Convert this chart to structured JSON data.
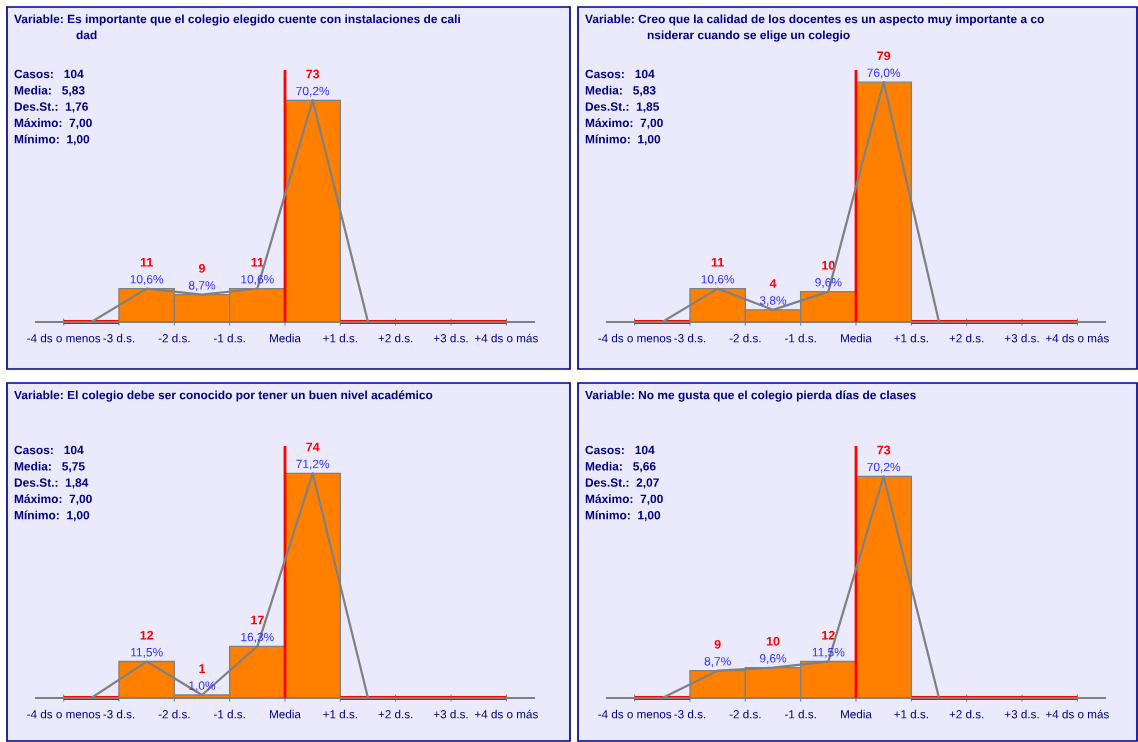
{
  "chart_data": [
    {
      "type": "histogram",
      "title": "Variable: Es importante que el colegio elegido cuente con instalaciones de cali\ndad",
      "bins": [
        -4,
        -3,
        -2,
        -1,
        0,
        1,
        2,
        3,
        4
      ],
      "values": [
        0,
        11,
        9,
        11,
        73,
        0,
        0,
        0
      ],
      "colors": [
        "#ff0000",
        "#ff8000",
        "#ff8000",
        "#ff8000",
        "#ff8000",
        "#ff0000",
        "#ff0000",
        "#ff0000"
      ],
      "value_labels": [
        null,
        "11",
        "9",
        "11",
        "73",
        null,
        null,
        null
      ],
      "series": [
        {
          "type": "line",
          "x": [
            -3.5,
            -2.5,
            -1.5,
            -0.5,
            0.5,
            1.5
          ],
          "values": [
            0,
            11,
            9,
            11,
            73,
            0
          ],
          "color": "#808080"
        }
      ],
      "xlim": [
        -4.5,
        4.5
      ],
      "ylim": [
        0,
        83
      ],
      "xticks": [
        {
          "value": -4,
          "label": "-4 ds o menos"
        },
        {
          "value": -3,
          "label": "-3 d.s."
        },
        {
          "value": -2,
          "label": "-2 d.s."
        },
        {
          "value": -1,
          "label": "-1 d.s."
        },
        {
          "value": 0,
          "label": "Media"
        },
        {
          "value": 1,
          "label": "+1 d.s."
        },
        {
          "value": 2,
          "label": "+2 d.s."
        },
        {
          "value": 3,
          "label": "+3 d.s."
        },
        {
          "value": 4,
          "label": "+4 ds o más"
        }
      ],
      "tick_labels": "x",
      "ref_lines": [
        {
          "axis": "x",
          "value": 0,
          "label": null,
          "color": "#ff0000"
        }
      ],
      "annotations": [
        "Casos:   104",
        "Media:   5,83",
        "Des.St.:  1,76",
        "Máximo:  7,00",
        "Mínimo:  1,00",
        {
          "text": "10,6%",
          "x": -2.5,
          "y": 11
        },
        {
          "text": "8,7%",
          "x": -1.5,
          "y": 9
        },
        {
          "text": "10,6%",
          "x": -0.5,
          "y": 11
        },
        {
          "text": "70,2%",
          "x": 0.5,
          "y": 73
        }
      ]
    },
    {
      "type": "histogram",
      "title": "Variable: Creo que la calidad de los docentes es un aspecto muy importante a co\nnsiderar cuando se elige un colegio",
      "bins": [
        -4,
        -3,
        -2,
        -1,
        0,
        1,
        2,
        3,
        4
      ],
      "values": [
        0,
        11,
        4,
        10,
        79,
        0,
        0,
        0
      ],
      "colors": [
        "#ff0000",
        "#ff8000",
        "#ff8000",
        "#ff8000",
        "#ff8000",
        "#ff0000",
        "#ff0000",
        "#ff0000"
      ],
      "value_labels": [
        null,
        "11",
        "4",
        "10",
        "79",
        null,
        null,
        null
      ],
      "series": [
        {
          "type": "line",
          "x": [
            -3.5,
            -2.5,
            -1.5,
            -0.5,
            0.5,
            1.5
          ],
          "values": [
            0,
            11,
            4,
            10,
            79,
            0
          ],
          "color": "#808080"
        }
      ],
      "xlim": [
        -4.5,
        4.5
      ],
      "ylim": [
        0,
        83
      ],
      "xticks": [
        {
          "value": -4,
          "label": "-4 ds o menos"
        },
        {
          "value": -3,
          "label": "-3 d.s."
        },
        {
          "value": -2,
          "label": "-2 d.s."
        },
        {
          "value": -1,
          "label": "-1 d.s."
        },
        {
          "value": 0,
          "label": "Media"
        },
        {
          "value": 1,
          "label": "+1 d.s."
        },
        {
          "value": 2,
          "label": "+2 d.s."
        },
        {
          "value": 3,
          "label": "+3 d.s."
        },
        {
          "value": 4,
          "label": "+4 ds o más"
        }
      ],
      "tick_labels": "x",
      "ref_lines": [
        {
          "axis": "x",
          "value": 0,
          "label": null,
          "color": "#ff0000"
        }
      ],
      "annotations": [
        "Casos:   104",
        "Media:   5,83",
        "Des.St.:  1,85",
        "Máximo:  7,00",
        "Mínimo:  1,00",
        {
          "text": "10,6%",
          "x": -2.5,
          "y": 11
        },
        {
          "text": "3,8%",
          "x": -1.5,
          "y": 4
        },
        {
          "text": "9,6%",
          "x": -0.5,
          "y": 10
        },
        {
          "text": "76,0%",
          "x": 0.5,
          "y": 79
        }
      ]
    },
    {
      "type": "histogram",
      "title": "Variable: El colegio debe ser conocido por tener un buen nivel académico",
      "bins": [
        -4,
        -3,
        -2,
        -1,
        0,
        1,
        2,
        3,
        4
      ],
      "values": [
        0,
        12,
        1,
        17,
        74,
        0,
        0,
        0
      ],
      "colors": [
        "#ff0000",
        "#ff8000",
        "#ff8000",
        "#ff8000",
        "#ff8000",
        "#ff0000",
        "#ff0000",
        "#ff0000"
      ],
      "value_labels": [
        null,
        "12",
        "1",
        "17",
        "74",
        null,
        null,
        null
      ],
      "series": [
        {
          "type": "line",
          "x": [
            -3.5,
            -2.5,
            -1.5,
            -0.5,
            0.5,
            1.5
          ],
          "values": [
            0,
            12,
            1,
            17,
            74,
            0
          ],
          "color": "#808080"
        }
      ],
      "xlim": [
        -4.5,
        4.5
      ],
      "ylim": [
        0,
        83
      ],
      "xticks": [
        {
          "value": -4,
          "label": "-4 ds o menos"
        },
        {
          "value": -3,
          "label": "-3 d.s."
        },
        {
          "value": -2,
          "label": "-2 d.s."
        },
        {
          "value": -1,
          "label": "-1 d.s."
        },
        {
          "value": 0,
          "label": "Media"
        },
        {
          "value": 1,
          "label": "+1 d.s."
        },
        {
          "value": 2,
          "label": "+2 d.s."
        },
        {
          "value": 3,
          "label": "+3 d.s."
        },
        {
          "value": 4,
          "label": "+4 ds o más"
        }
      ],
      "tick_labels": "x",
      "ref_lines": [
        {
          "axis": "x",
          "value": 0,
          "label": null,
          "color": "#ff0000"
        }
      ],
      "annotations": [
        "Casos:   104",
        "Media:   5,75",
        "Des.St.:  1,84",
        "Máximo:  7,00",
        "Mínimo:  1,00",
        {
          "text": "11,5%",
          "x": -2.5,
          "y": 12
        },
        {
          "text": "1,0%",
          "x": -1.5,
          "y": 1
        },
        {
          "text": "16,3%",
          "x": -0.5,
          "y": 17
        },
        {
          "text": "71,2%",
          "x": 0.5,
          "y": 74
        }
      ]
    },
    {
      "type": "histogram",
      "title": "Variable: No me gusta que el colegio pierda días de clases",
      "bins": [
        -4,
        -3,
        -2,
        -1,
        0,
        1,
        2,
        3,
        4
      ],
      "values": [
        0,
        9,
        10,
        12,
        73,
        0,
        0,
        0
      ],
      "colors": [
        "#ff0000",
        "#ff8000",
        "#ff8000",
        "#ff8000",
        "#ff8000",
        "#ff0000",
        "#ff0000",
        "#ff0000"
      ],
      "value_labels": [
        null,
        "9",
        "10",
        "12",
        "73",
        null,
        null,
        null
      ],
      "series": [
        {
          "type": "line",
          "x": [
            -3.5,
            -2.5,
            -1.5,
            -0.5,
            0.5,
            1.5
          ],
          "values": [
            0,
            9,
            10,
            12,
            73,
            0
          ],
          "color": "#808080"
        }
      ],
      "xlim": [
        -4.5,
        4.5
      ],
      "ylim": [
        0,
        83
      ],
      "xticks": [
        {
          "value": -4,
          "label": "-4 ds o menos"
        },
        {
          "value": -3,
          "label": "-3 d.s."
        },
        {
          "value": -2,
          "label": "-2 d.s."
        },
        {
          "value": -1,
          "label": "-1 d.s."
        },
        {
          "value": 0,
          "label": "Media"
        },
        {
          "value": 1,
          "label": "+1 d.s."
        },
        {
          "value": 2,
          "label": "+2 d.s."
        },
        {
          "value": 3,
          "label": "+3 d.s."
        },
        {
          "value": 4,
          "label": "+4 ds o más"
        }
      ],
      "tick_labels": "x",
      "ref_lines": [
        {
          "axis": "x",
          "value": 0,
          "label": null,
          "color": "#ff0000"
        }
      ],
      "annotations": [
        "Casos:   104",
        "Media:   5,66",
        "Des.St.:  2,07",
        "Máximo:  7,00",
        "Mínimo:  1,00",
        {
          "text": "8,7%",
          "x": -2.5,
          "y": 9
        },
        {
          "text": "9,6%",
          "x": -1.5,
          "y": 10
        },
        {
          "text": "11,5%",
          "x": -0.5,
          "y": 12
        },
        {
          "text": "70,2%",
          "x": 0.5,
          "y": 73
        }
      ]
    }
  ]
}
